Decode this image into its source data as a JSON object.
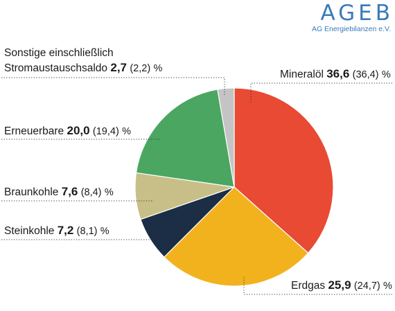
{
  "logo": {
    "word": "AGEB",
    "subtitle": "AG Energiebilanzen e.V."
  },
  "chart_data": {
    "type": "pie",
    "unit": "%",
    "slices": [
      {
        "key": "mineraloel",
        "label": "Mineralöl",
        "value": 36.6,
        "value_text": "36,6",
        "prev_text": "(36,4)",
        "color": "#e84a33"
      },
      {
        "key": "erdgas",
        "label": "Erdgas",
        "value": 25.9,
        "value_text": "25,9",
        "prev_text": "(24,7)",
        "color": "#f2b21e"
      },
      {
        "key": "steinkohle",
        "label": "Steinkohle",
        "value": 7.2,
        "value_text": "7,2",
        "prev_text": "(8,1)",
        "color": "#1b2e45"
      },
      {
        "key": "braunkohle",
        "label": "Braunkohle",
        "value": 7.6,
        "value_text": "7,6",
        "prev_text": "(8,4)",
        "color": "#c8bf88"
      },
      {
        "key": "erneuerbare",
        "label": "Erneuerbare",
        "value": 20.0,
        "value_text": "20,0",
        "prev_text": "(19,4)",
        "color": "#4aa661"
      },
      {
        "key": "sonstige",
        "label": "Sonstige einschließlich",
        "label_line2": "Stromaustauschsaldo",
        "value": 2.7,
        "value_text": "2,7",
        "prev_text": "(2,2)",
        "color": "#c4c4c4"
      }
    ]
  }
}
